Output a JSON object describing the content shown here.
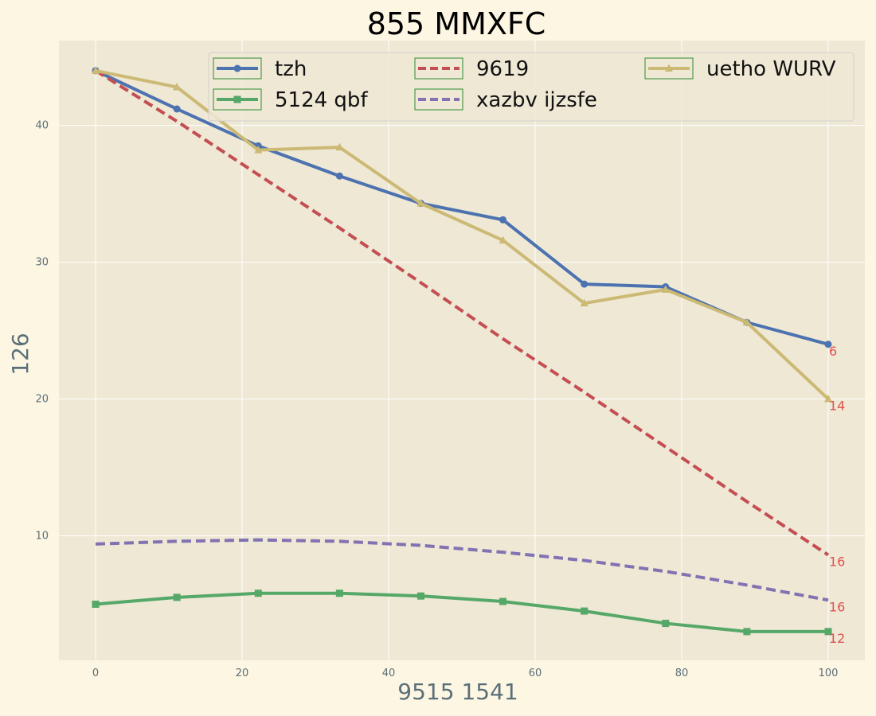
{
  "chart_data": {
    "type": "line",
    "title": "855 MMXFC",
    "xlabel": "9515 1541",
    "ylabel": "126",
    "xlim": [
      -5,
      105
    ],
    "ylim": [
      0.9,
      46.2
    ],
    "grid": true,
    "legend_position": "top-right",
    "legend_columns": 3,
    "x_ticks": [
      0,
      20,
      40,
      60,
      80,
      100
    ],
    "y_ticks": [
      10,
      20,
      30,
      40
    ],
    "x": [
      0,
      11.1,
      22.2,
      33.3,
      44.4,
      55.6,
      66.7,
      77.8,
      88.9,
      100
    ],
    "series": [
      {
        "name": "tzh",
        "color": "#4c72b0",
        "style": "solid",
        "marker": "circle",
        "values": [
          44.0,
          41.2,
          38.5,
          36.3,
          34.3,
          33.1,
          28.4,
          28.2,
          25.6,
          24.0
        ],
        "end_label": "6"
      },
      {
        "name": "5124 qbf",
        "color": "#55a868",
        "style": "solid",
        "marker": "square",
        "values": [
          5.0,
          5.5,
          5.8,
          5.8,
          5.6,
          5.2,
          4.5,
          3.6,
          3.0,
          3.0
        ],
        "end_label": "12"
      },
      {
        "name": "9619",
        "color": "#c44e52",
        "style": "dashed",
        "marker": "none",
        "values": [
          44.0,
          40.3,
          36.4,
          32.5,
          28.5,
          24.4,
          20.5,
          16.5,
          12.5,
          8.6
        ],
        "end_label": "16"
      },
      {
        "name": "xazbv ijzsfe",
        "color": "#8172b2",
        "style": "dashed",
        "marker": "none",
        "values": [
          9.4,
          9.6,
          9.7,
          9.6,
          9.3,
          8.8,
          8.2,
          7.4,
          6.4,
          5.3
        ],
        "end_label": "16"
      },
      {
        "name": "uetho WURV",
        "color": "#ccb974",
        "style": "solid",
        "marker": "triangle",
        "values": [
          44.0,
          42.8,
          38.2,
          38.4,
          34.3,
          31.6,
          27.0,
          28.0,
          25.6,
          20.0
        ],
        "end_label": "14"
      }
    ]
  }
}
